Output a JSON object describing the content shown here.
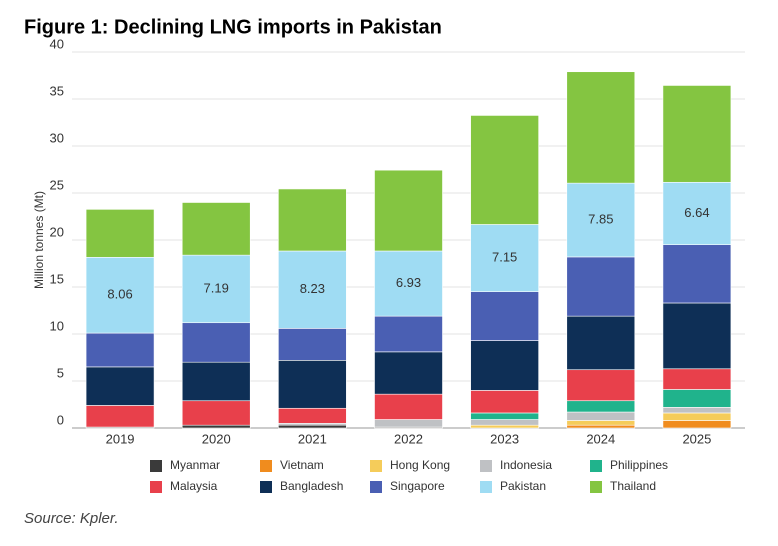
{
  "chart_data": {
    "type": "stacked_bar",
    "title": "Figure 1: Declining LNG imports in Pakistan",
    "y_label": "Million tonnes (Mt)",
    "source": "Source: Kpler.",
    "categories": [
      "2019",
      "2020",
      "2021",
      "2022",
      "2023",
      "2024",
      "2025"
    ],
    "ylim": [
      0,
      40
    ],
    "yticks": [
      0,
      5,
      10,
      15,
      20,
      25,
      30,
      35,
      40
    ],
    "grid": true,
    "data_labels_series": "Pakistan",
    "series": [
      {
        "name": "Myanmar",
        "color": "#3a3a3a",
        "values": [
          0.1,
          0.3,
          0.3,
          0.1,
          0,
          0,
          0
        ]
      },
      {
        "name": "Vietnam",
        "color": "#f08c1e",
        "values": [
          0,
          0,
          0,
          0,
          0,
          0.3,
          0.8
        ]
      },
      {
        "name": "Hong Kong",
        "color": "#f5cc5a",
        "values": [
          0,
          0,
          0,
          0,
          0.3,
          0.5,
          0.8
        ]
      },
      {
        "name": "Indonesia",
        "color": "#bfc1c4",
        "values": [
          0,
          0,
          0.2,
          0.8,
          0.6,
          0.9,
          0.6
        ]
      },
      {
        "name": "Philippines",
        "color": "#20b38c",
        "values": [
          0,
          0,
          0,
          0,
          0.7,
          1.2,
          1.9
        ]
      },
      {
        "name": "Malaysia",
        "color": "#e8404b",
        "values": [
          2.3,
          2.6,
          1.6,
          2.7,
          2.4,
          3.3,
          2.2
        ]
      },
      {
        "name": "Bangladesh",
        "color": "#0e2f56",
        "values": [
          4.1,
          4.1,
          5.1,
          4.5,
          5.3,
          5.7,
          7.0
        ]
      },
      {
        "name": "Singapore",
        "color": "#4a5fb3",
        "values": [
          3.6,
          4.2,
          3.4,
          3.8,
          5.2,
          6.3,
          6.2
        ]
      },
      {
        "name": "Pakistan",
        "color": "#9fdcf3",
        "values": [
          8.06,
          7.19,
          8.23,
          6.93,
          7.15,
          7.85,
          6.64
        ]
      },
      {
        "name": "Thailand",
        "color": "#84c541",
        "values": [
          5.1,
          5.6,
          6.6,
          8.6,
          11.6,
          11.85,
          10.3
        ]
      }
    ]
  }
}
